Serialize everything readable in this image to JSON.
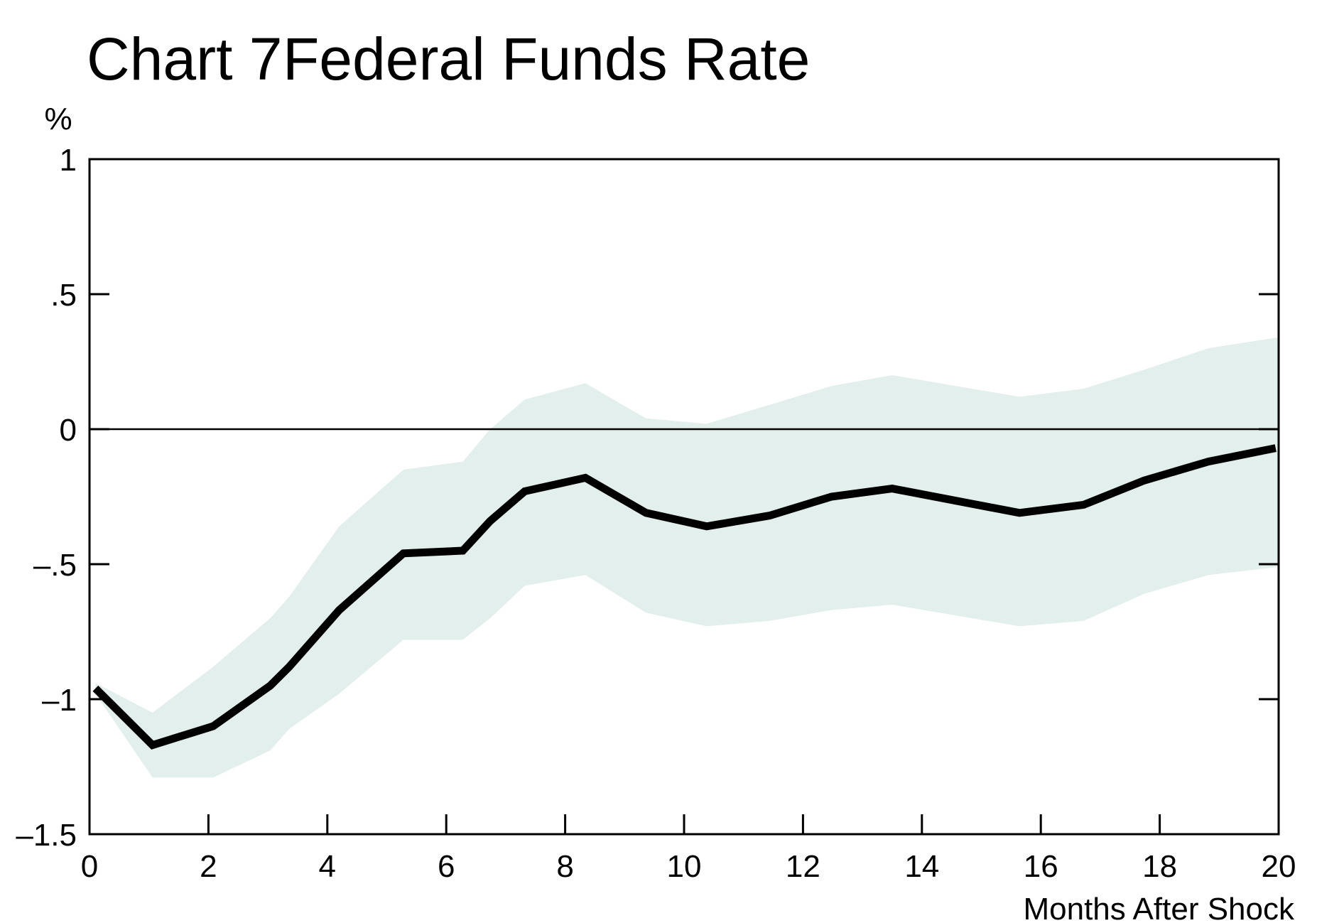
{
  "chart_data": {
    "type": "line",
    "title_prefix": "Chart 7",
    "title": "Federal Funds Rate",
    "ylabel": "%",
    "xlabel": "Months After Shock",
    "xlim": [
      0,
      20
    ],
    "ylim": [
      -1.5,
      1
    ],
    "x_ticks": [
      0,
      2,
      4,
      6,
      8,
      10,
      12,
      14,
      16,
      18,
      20
    ],
    "x_tick_labels": [
      "0",
      "2",
      "4",
      "6",
      "8",
      "10",
      "12",
      "14",
      "16",
      "18",
      "20"
    ],
    "y_ticks": [
      1,
      0.5,
      0,
      -0.5,
      -1,
      -1.5
    ],
    "y_tick_labels": [
      "1",
      ".5",
      "0",
      "–.5",
      "–1",
      "–1.5"
    ],
    "zero_line": true,
    "grid": false,
    "colors": {
      "line": "#000000",
      "band": "#e3efec",
      "frame": "#000000"
    },
    "series": [
      {
        "x": [
          0.1,
          1.06,
          2.08,
          3.04,
          3.36,
          4.2,
          5.28,
          6.28,
          6.74,
          7.32,
          8.34,
          9.36,
          10.38,
          11.44,
          12.48,
          13.5,
          15.64,
          16.72,
          17.74,
          18.82,
          19.95
        ],
        "values": [
          -0.96,
          -1.17,
          -1.1,
          -0.95,
          -0.88,
          -0.67,
          -0.46,
          -0.45,
          -0.34,
          -0.23,
          -0.18,
          -0.31,
          -0.36,
          -0.32,
          -0.25,
          -0.22,
          -0.31,
          -0.28,
          -0.19,
          -0.12,
          -0.07
        ]
      }
    ],
    "confidence_band": {
      "x": [
        0.1,
        1.06,
        2.08,
        3.04,
        3.36,
        4.2,
        5.28,
        6.28,
        6.74,
        7.32,
        8.34,
        9.36,
        10.38,
        11.44,
        12.48,
        13.5,
        15.64,
        16.72,
        17.74,
        18.82,
        20
      ],
      "upper": [
        -0.94,
        -1.05,
        -0.88,
        -0.7,
        -0.62,
        -0.36,
        -0.15,
        -0.12,
        0.0,
        0.11,
        0.17,
        0.04,
        0.02,
        0.09,
        0.16,
        0.2,
        0.12,
        0.15,
        0.22,
        0.3,
        0.34
      ],
      "lower": [
        -0.98,
        -1.29,
        -1.29,
        -1.19,
        -1.11,
        -0.98,
        -0.78,
        -0.78,
        -0.7,
        -0.58,
        -0.54,
        -0.68,
        -0.73,
        -0.71,
        -0.67,
        -0.65,
        -0.73,
        -0.71,
        -0.61,
        -0.54,
        -0.51
      ]
    }
  }
}
